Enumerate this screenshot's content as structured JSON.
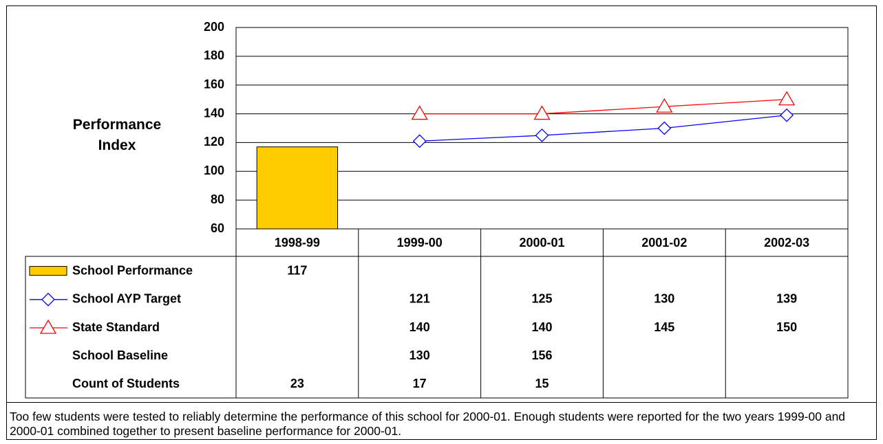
{
  "chart_data": {
    "type": "bar",
    "y_label": "Performance Index",
    "categories": [
      "1998-99",
      "1999-00",
      "2000-01",
      "2001-02",
      "2002-03"
    ],
    "series": [
      {
        "name": "School Performance",
        "type": "bar",
        "color": "#ffcc00",
        "values": [
          117,
          null,
          null,
          null,
          null
        ]
      },
      {
        "name": "School AYP Target",
        "type": "line",
        "marker": "diamond",
        "color": "#0000ff",
        "values": [
          null,
          121,
          125,
          130,
          139
        ]
      },
      {
        "name": "State Standard",
        "type": "line",
        "marker": "triangle",
        "color": "#ff0000",
        "values": [
          null,
          140,
          140,
          145,
          150
        ]
      },
      {
        "name": "School Baseline",
        "type": "table",
        "values": [
          null,
          130,
          156,
          null,
          null
        ]
      },
      {
        "name": "Count of Students",
        "type": "table",
        "values": [
          23,
          17,
          15,
          null,
          null
        ]
      }
    ],
    "ylim": [
      60,
      200
    ],
    "yticks": [
      60,
      80,
      100,
      120,
      140,
      160,
      180,
      200
    ],
    "grid": true,
    "note": "Too few students were tested to reliably determine the performance of this school for 2000-01. Enough students were reported for the two years 1999-00 and 2000-01 combined together to present baseline performance for 2000-01."
  }
}
